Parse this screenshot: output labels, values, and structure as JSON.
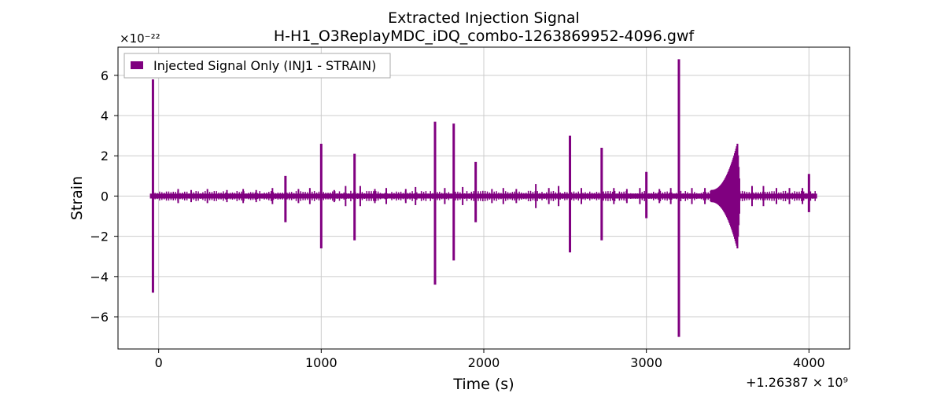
{
  "chart_data": {
    "type": "line",
    "title": "Extracted Injection Signal",
    "subtitle": "H-H1_O3ReplayMDC_iDQ_combo-1263869952-4096.gwf",
    "xlabel": "Time (s)",
    "ylabel": "Strain",
    "xlim": [
      -250,
      4250
    ],
    "ylim": [
      -7.6,
      7.4
    ],
    "y_scale_text": "×10⁻²²",
    "x_offset_text": "+1.26387 × 10⁹",
    "x_ticks": [
      0,
      1000,
      2000,
      3000,
      4000
    ],
    "x_tick_labels": [
      "0",
      "1000",
      "2000",
      "3000",
      "4000"
    ],
    "y_ticks": [
      6,
      4,
      2,
      0,
      -2,
      -4,
      -6
    ],
    "y_tick_labels": [
      "6",
      "4",
      "2",
      "0",
      "−2",
      "−4",
      "−6"
    ],
    "grid": true,
    "legend_position": "top-left",
    "series": [
      {
        "name": "Injected Signal Only (INJ1 - STRAIN)",
        "color": "#800080",
        "x_range": [
          -50,
          4050
        ],
        "baseline_amplitude": 0.12,
        "spikes": [
          {
            "t": -35,
            "up": 5.8,
            "down": -4.8
          },
          {
            "t": 780,
            "up": 1.0,
            "down": -1.3
          },
          {
            "t": 1000,
            "up": 2.6,
            "down": -2.6
          },
          {
            "t": 1205,
            "up": 2.1,
            "down": -2.2
          },
          {
            "t": 1700,
            "up": 3.7,
            "down": -4.4
          },
          {
            "t": 1815,
            "up": 3.6,
            "down": -3.2
          },
          {
            "t": 1950,
            "up": 1.7,
            "down": -1.3
          },
          {
            "t": 2530,
            "up": 3.0,
            "down": -2.8
          },
          {
            "t": 2725,
            "up": 2.4,
            "down": -2.2
          },
          {
            "t": 3000,
            "up": 1.2,
            "down": -1.1
          },
          {
            "t": 3200,
            "up": 6.8,
            "down": -7.0
          },
          {
            "t": 4000,
            "up": 1.1,
            "down": -0.8
          }
        ],
        "minor_spikes": [
          {
            "t": 120,
            "amp": 0.35
          },
          {
            "t": 200,
            "amp": 0.3
          },
          {
            "t": 300,
            "amp": 0.35
          },
          {
            "t": 420,
            "amp": 0.3
          },
          {
            "t": 520,
            "amp": 0.35
          },
          {
            "t": 600,
            "amp": 0.3
          },
          {
            "t": 700,
            "amp": 0.4
          },
          {
            "t": 860,
            "amp": 0.35
          },
          {
            "t": 930,
            "amp": 0.4
          },
          {
            "t": 1080,
            "amp": 0.3
          },
          {
            "t": 1150,
            "amp": 0.5
          },
          {
            "t": 1240,
            "amp": 0.5
          },
          {
            "t": 1330,
            "amp": 0.35
          },
          {
            "t": 1400,
            "amp": 0.4
          },
          {
            "t": 1520,
            "amp": 0.35
          },
          {
            "t": 1580,
            "amp": 0.45
          },
          {
            "t": 1760,
            "amp": 0.4
          },
          {
            "t": 1870,
            "amp": 0.45
          },
          {
            "t": 2050,
            "amp": 0.35
          },
          {
            "t": 2120,
            "amp": 0.4
          },
          {
            "t": 2200,
            "amp": 0.35
          },
          {
            "t": 2320,
            "amp": 0.6
          },
          {
            "t": 2400,
            "amp": 0.4
          },
          {
            "t": 2460,
            "amp": 0.5
          },
          {
            "t": 2600,
            "amp": 0.4
          },
          {
            "t": 2800,
            "amp": 0.4
          },
          {
            "t": 2880,
            "amp": 0.35
          },
          {
            "t": 2960,
            "amp": 0.4
          },
          {
            "t": 3080,
            "amp": 0.35
          },
          {
            "t": 3150,
            "amp": 0.4
          },
          {
            "t": 3280,
            "amp": 0.4
          },
          {
            "t": 3360,
            "amp": 0.4
          },
          {
            "t": 3650,
            "amp": 0.5
          },
          {
            "t": 3720,
            "amp": 0.5
          },
          {
            "t": 3800,
            "amp": 0.4
          },
          {
            "t": 3880,
            "amp": 0.4
          },
          {
            "t": 3960,
            "amp": 0.4
          }
        ],
        "burst": {
          "start": 3400,
          "peak": 3560,
          "end": 3575,
          "peak_up": 2.6,
          "peak_down": -2.6,
          "base": 0.3
        }
      }
    ]
  }
}
